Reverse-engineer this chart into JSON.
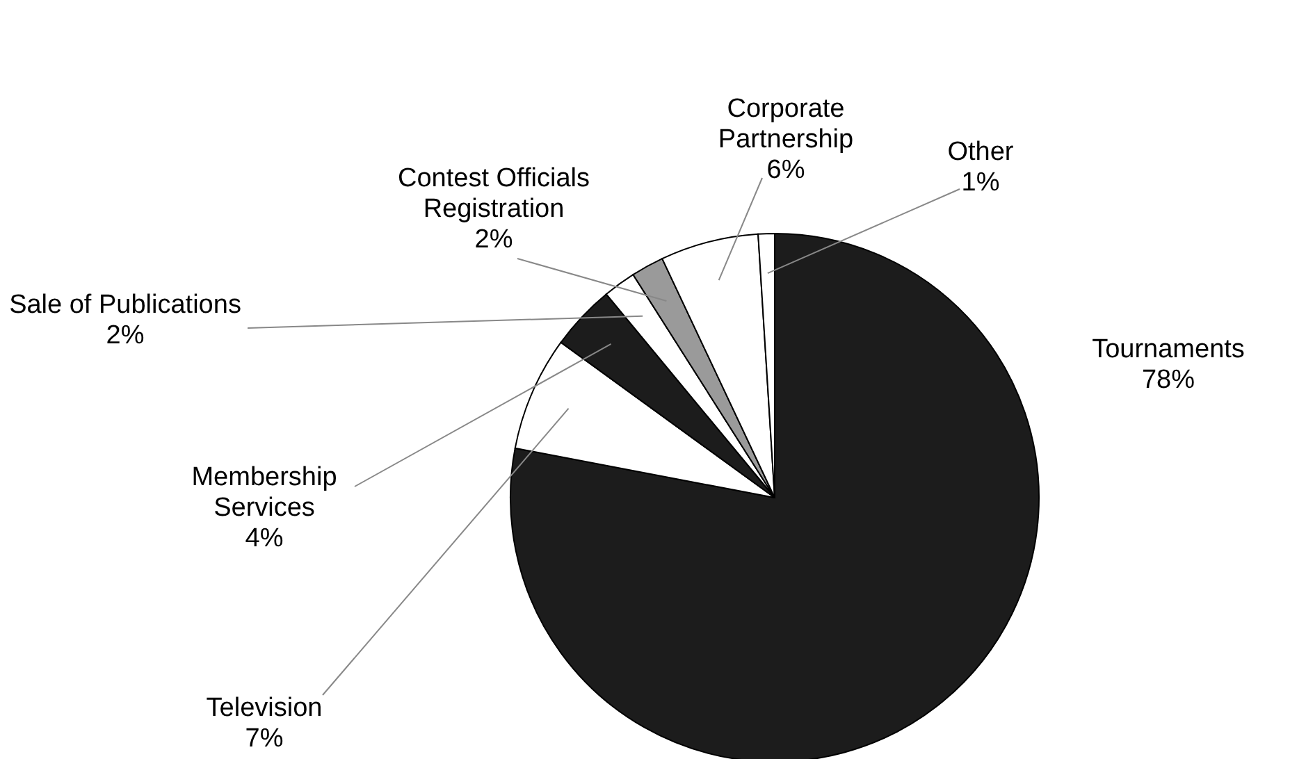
{
  "chart_data": {
    "type": "pie",
    "categories": [
      "Tournaments",
      "Television",
      "Membership Services",
      "Sale of Publications",
      "Contest Officials Registration",
      "Corporate Partnership",
      "Other"
    ],
    "values": [
      78,
      7,
      4,
      2,
      2,
      6,
      1
    ],
    "colors": [
      "#1c1c1c",
      "#ffffff",
      "#1c1c1c",
      "#ffffff",
      "#9a9a9a",
      "#ffffff",
      "#ffffff"
    ],
    "value_labels": [
      "78%",
      "7%",
      "4%",
      "2%",
      "2%",
      "6%",
      "1%"
    ]
  }
}
